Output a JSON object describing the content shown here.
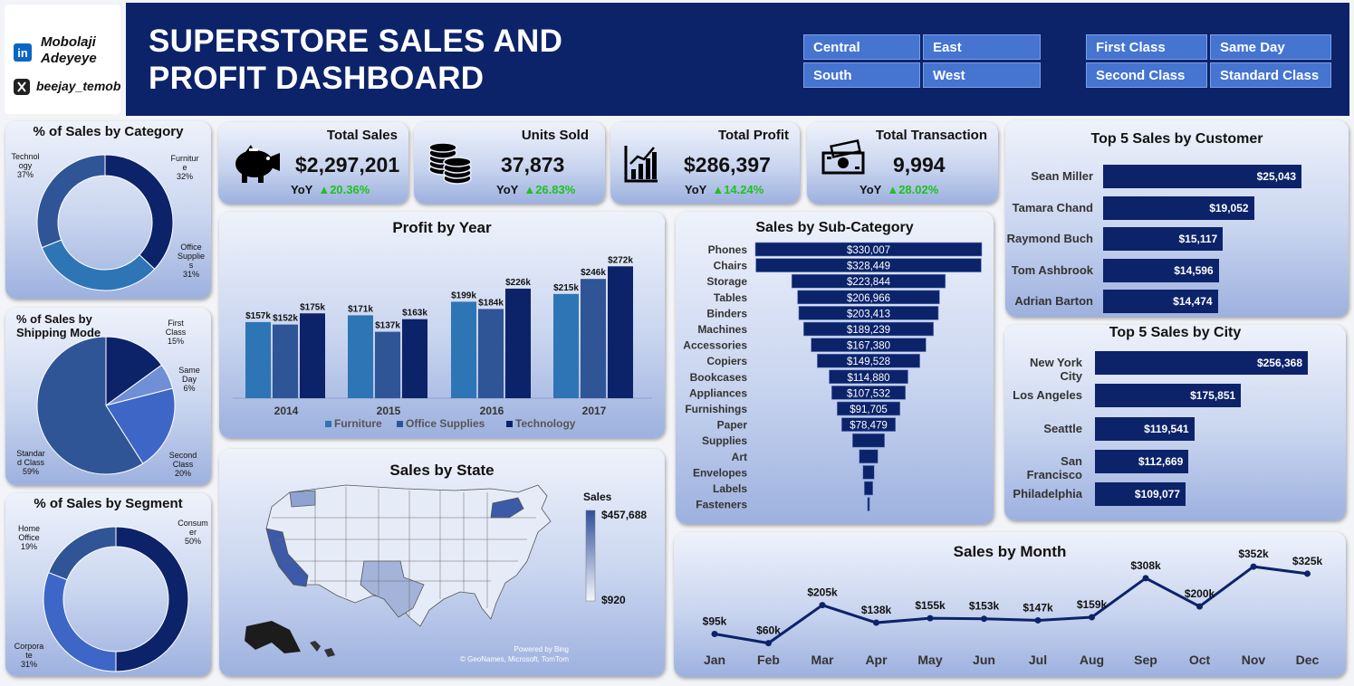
{
  "author": {
    "name": "Mobolaji Adeyeye",
    "handle": "beejay_temob",
    "icons": [
      "linkedin-icon",
      "x-icon"
    ]
  },
  "header": {
    "title_line1": "SUPERSTORE SALES AND",
    "title_line2": "PROFIT DASHBOARD"
  },
  "region_slicer": [
    "Central",
    "East",
    "South",
    "West"
  ],
  "ship_slicer": [
    "First Class",
    "Same Day",
    "Second Class",
    "Standard Class"
  ],
  "kpis": [
    {
      "title": "Total Sales",
      "value": "$2,297,201",
      "yoy_label": "YoY",
      "yoy": "▲20.36%",
      "icon": "piggy-bank-icon"
    },
    {
      "title": "Units Sold",
      "value": "37,873",
      "yoy_label": "YoY",
      "yoy": "▲26.83%",
      "icon": "coins-icon"
    },
    {
      "title": "Total Profit",
      "value": "$286,397",
      "yoy_label": "YoY",
      "yoy": "▲14.24%",
      "icon": "bar-chart-icon"
    },
    {
      "title": "Total Transaction",
      "value": "9,994",
      "yoy_label": "YoY",
      "yoy": "▲28.02%",
      "icon": "money-icon"
    }
  ],
  "colors": {
    "navy": "#0c236a",
    "mid_blue": "#2f5597",
    "light_blue": "#2e75b6",
    "accent": "#4574d1",
    "green": "#1ec21e"
  },
  "chart_data": [
    {
      "type": "pie",
      "variant": "donut",
      "title": "% of Sales by Category",
      "categories": [
        "Technology",
        "Furniture",
        "Office Supplies"
      ],
      "values": [
        37,
        32,
        31
      ],
      "labels": [
        [
          "Technol",
          "ogy",
          "37%"
        ],
        [
          "Furnitur",
          "e",
          "32%"
        ],
        [
          "Office",
          "Supplie",
          "s",
          "31%"
        ]
      ],
      "colors": [
        "#0c236a",
        "#2e75b6",
        "#2f5597"
      ]
    },
    {
      "type": "pie",
      "title": "% of Sales by Shipping Mode",
      "title_lines": [
        "% of Sales by",
        "Shipping Mode"
      ],
      "categories": [
        "First Class",
        "Same Day",
        "Second Class",
        "Standard Class"
      ],
      "values": [
        15,
        6,
        20,
        59
      ],
      "labels": [
        [
          "First",
          "Class",
          "15%"
        ],
        [
          "Same",
          "Day",
          "6%"
        ],
        [
          "Second",
          "Class",
          "20%"
        ],
        [
          "Standar",
          "d Class",
          "59%"
        ]
      ],
      "colors": [
        "#0c236a",
        "#6f8fd6",
        "#3d66c7",
        "#2f5597"
      ]
    },
    {
      "type": "pie",
      "variant": "donut",
      "title": "% of Sales by Segment",
      "categories": [
        "Consumer",
        "Corporate",
        "Home Office"
      ],
      "values": [
        50,
        31,
        19
      ],
      "labels": [
        [
          "Consum",
          "er",
          "50%"
        ],
        [
          "Corpora",
          "te",
          "31%"
        ],
        [
          "Home",
          "Office",
          "19%"
        ]
      ],
      "colors": [
        "#0c236a",
        "#3d66c7",
        "#2f5597"
      ]
    },
    {
      "type": "bar",
      "title": "Profit by Year",
      "categories": [
        "2014",
        "2015",
        "2016",
        "2017"
      ],
      "series": [
        {
          "name": "Furniture",
          "values": [
            157,
            171,
            199,
            215
          ],
          "labels": [
            "$157k",
            "$171k",
            "$199k",
            "$215k"
          ],
          "color": "#2e75b6"
        },
        {
          "name": "Office Supplies",
          "values": [
            152,
            137,
            184,
            246
          ],
          "labels": [
            "$152k",
            "$137k",
            "$184k",
            "$246k"
          ],
          "color": "#2f5597"
        },
        {
          "name": "Technology",
          "values": [
            175,
            163,
            226,
            272
          ],
          "labels": [
            "$175k",
            "$163k",
            "$226k",
            "$272k"
          ],
          "color": "#0c236a"
        }
      ],
      "ylim": [
        0,
        280
      ],
      "legend": "bottom"
    },
    {
      "type": "bar",
      "variant": "funnel",
      "title": "Sales by Sub-Category",
      "categories": [
        "Phones",
        "Chairs",
        "Storage",
        "Tables",
        "Binders",
        "Machines",
        "Accessories",
        "Copiers",
        "Bookcases",
        "Appliances",
        "Furnishings",
        "Paper",
        "Supplies",
        "Art",
        "Envelopes",
        "Labels",
        "Fasteners"
      ],
      "values": [
        330007,
        328449,
        223844,
        206966,
        203413,
        189239,
        167380,
        149528,
        114880,
        107532,
        91705,
        78479,
        46674,
        27119,
        16476,
        12486,
        3024
      ],
      "labels": [
        "$330,007",
        "$328,449",
        "$223,844",
        "$206,966",
        "$203,413",
        "$189,239",
        "$167,380",
        "$149,528",
        "$114,880",
        "$107,532",
        "$91,705",
        "$78,479",
        "",
        "",
        "",
        "",
        ""
      ]
    },
    {
      "type": "bar",
      "orientation": "horizontal",
      "title": "Top 5 Sales by Customer",
      "categories": [
        "Sean Miller",
        "Tamara Chand",
        "Raymond Buch",
        "Tom Ashbrook",
        "Adrian Barton"
      ],
      "values": [
        25043,
        19052,
        15117,
        14596,
        14474
      ],
      "labels": [
        "$25,043",
        "$19,052",
        "$15,117",
        "$14,596",
        "$14,474"
      ]
    },
    {
      "type": "bar",
      "orientation": "horizontal",
      "title": "Top 5 Sales by City",
      "categories": [
        "New York City",
        "Los Angeles",
        "Seattle",
        "San Francisco",
        "Philadelphia"
      ],
      "values": [
        256368,
        175851,
        119541,
        112669,
        109077
      ],
      "labels": [
        "$256,368",
        "$175,851",
        "$119,541",
        "$112,669",
        "$109,077"
      ]
    },
    {
      "type": "line",
      "title": "Sales by Month",
      "categories": [
        "Jan",
        "Feb",
        "Mar",
        "Apr",
        "May",
        "Jun",
        "Jul",
        "Aug",
        "Sep",
        "Oct",
        "Nov",
        "Dec"
      ],
      "values": [
        95,
        60,
        205,
        138,
        155,
        153,
        147,
        159,
        308,
        200,
        352,
        325
      ],
      "labels": [
        "$95k",
        "$60k",
        "$205k",
        "$138k",
        "$155k",
        "$153k",
        "$147k",
        "$159k",
        "$308k",
        "$200k",
        "$352k",
        "$325k"
      ],
      "ylim": [
        0,
        380
      ]
    },
    {
      "type": "heatmap",
      "variant": "choropleth",
      "title": "Sales by State",
      "legend_title": "Sales",
      "legend_max": "$457,688",
      "legend_min": "$920",
      "credits": [
        "Powered by Bing",
        "© GeoNames, Microsoft, TomTom"
      ]
    }
  ]
}
